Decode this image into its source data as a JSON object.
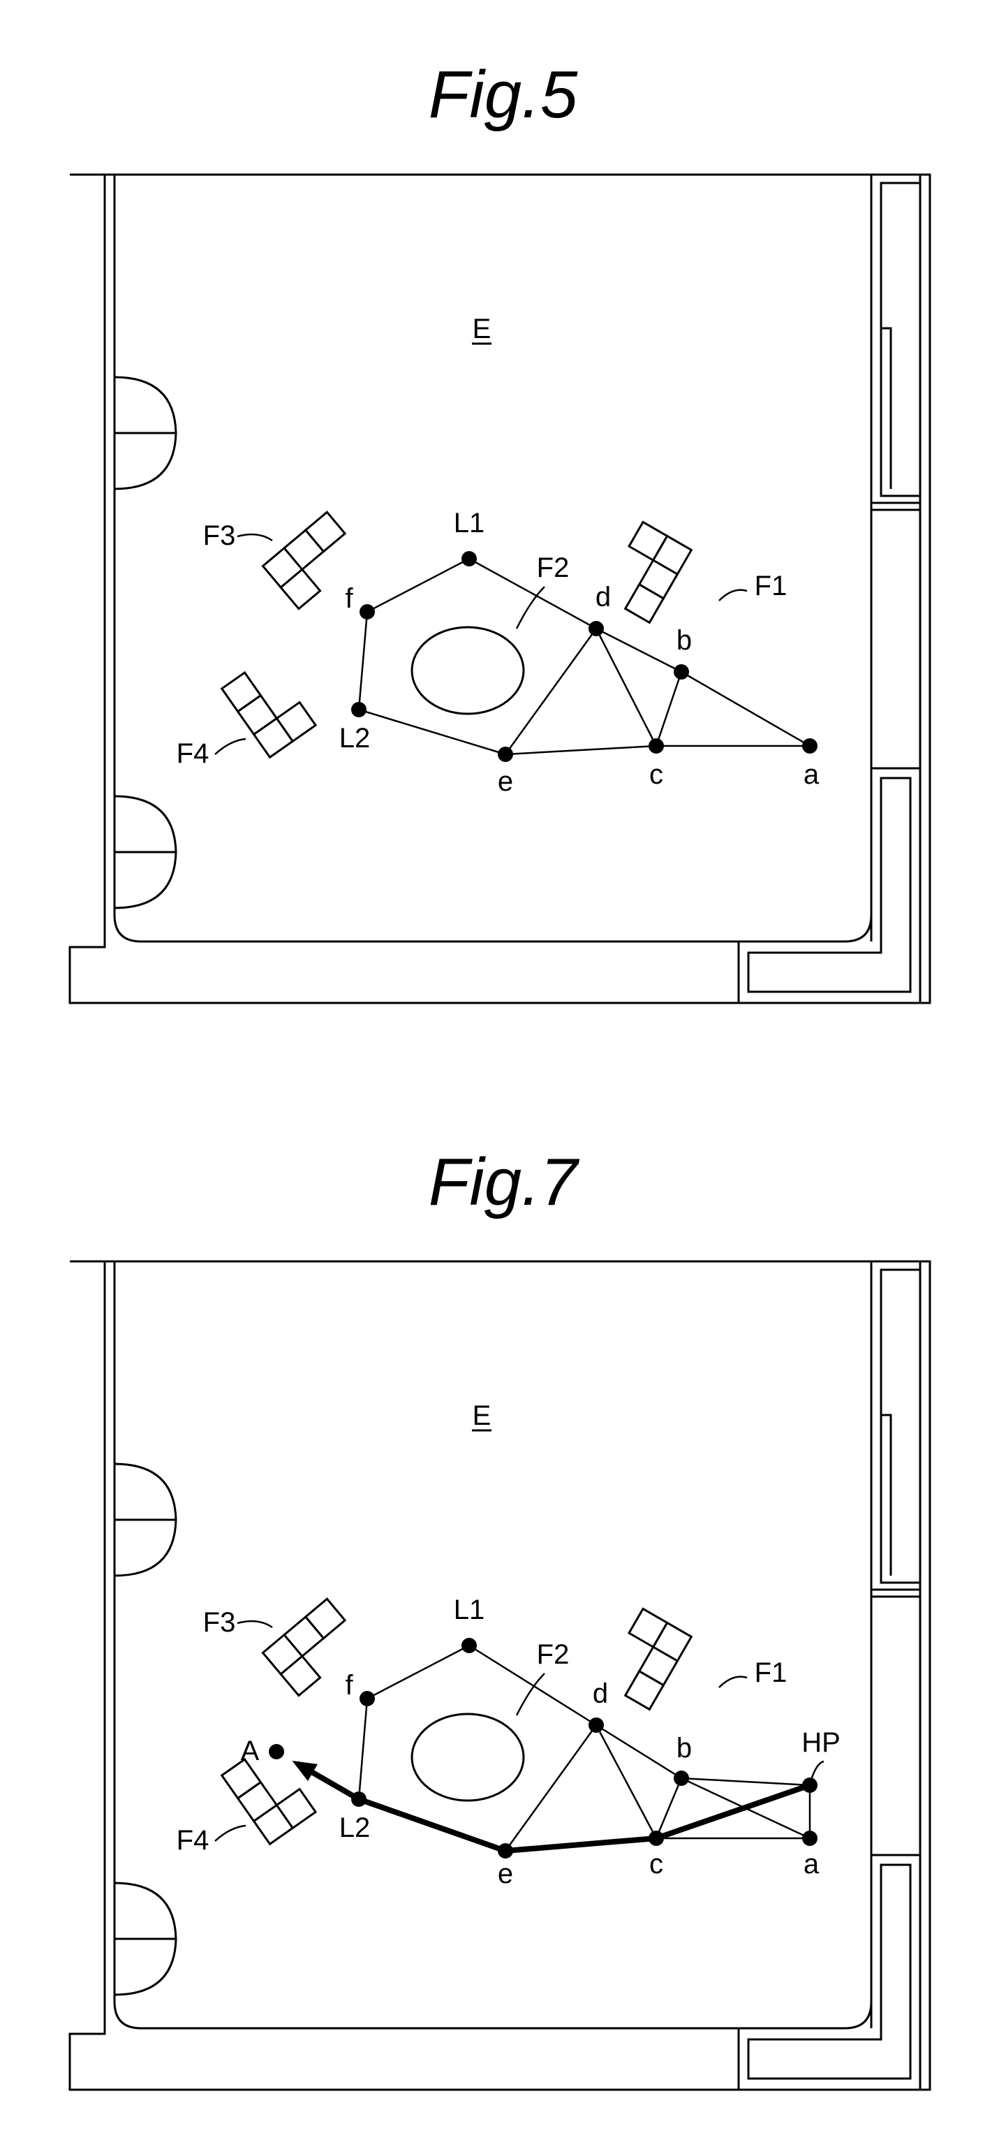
{
  "figures": [
    {
      "title": "Fig.5",
      "room_label": "E",
      "furniture_labels": [
        "F1",
        "F2",
        "F3",
        "F4"
      ],
      "nodes": [
        {
          "id": "L1",
          "label": "L1"
        },
        {
          "id": "f",
          "label": "f"
        },
        {
          "id": "L2",
          "label": "L2"
        },
        {
          "id": "e",
          "label": "e"
        },
        {
          "id": "d",
          "label": "d"
        },
        {
          "id": "c",
          "label": "c"
        },
        {
          "id": "b",
          "label": "b"
        },
        {
          "id": "a",
          "label": "a"
        }
      ],
      "edges": [
        [
          "L1",
          "f"
        ],
        [
          "f",
          "L2"
        ],
        [
          "L2",
          "e"
        ],
        [
          "e",
          "d"
        ],
        [
          "e",
          "c"
        ],
        [
          "d",
          "c"
        ],
        [
          "d",
          "b"
        ],
        [
          "c",
          "b"
        ],
        [
          "c",
          "a"
        ],
        [
          "b",
          "a"
        ],
        [
          "L1",
          "d"
        ]
      ]
    },
    {
      "title": "Fig.7",
      "room_label": "E",
      "furniture_labels": [
        "F1",
        "F2",
        "F3",
        "F4"
      ],
      "nodes": [
        {
          "id": "L1",
          "label": "L1"
        },
        {
          "id": "f",
          "label": "f"
        },
        {
          "id": "L2",
          "label": "L2"
        },
        {
          "id": "e",
          "label": "e"
        },
        {
          "id": "d",
          "label": "d"
        },
        {
          "id": "c",
          "label": "c"
        },
        {
          "id": "b",
          "label": "b"
        },
        {
          "id": "a",
          "label": "a"
        },
        {
          "id": "HP",
          "label": "HP"
        },
        {
          "id": "A",
          "label": "A"
        }
      ],
      "edges": [
        [
          "L1",
          "f"
        ],
        [
          "f",
          "L2"
        ],
        [
          "L2",
          "e"
        ],
        [
          "e",
          "d"
        ],
        [
          "e",
          "c"
        ],
        [
          "d",
          "c"
        ],
        [
          "d",
          "b"
        ],
        [
          "c",
          "b"
        ],
        [
          "c",
          "a"
        ],
        [
          "b",
          "a"
        ],
        [
          "L1",
          "d"
        ],
        [
          "b",
          "HP"
        ],
        [
          "HP",
          "a"
        ]
      ],
      "path": [
        "HP",
        "c",
        "e",
        "L2",
        "A"
      ]
    }
  ]
}
